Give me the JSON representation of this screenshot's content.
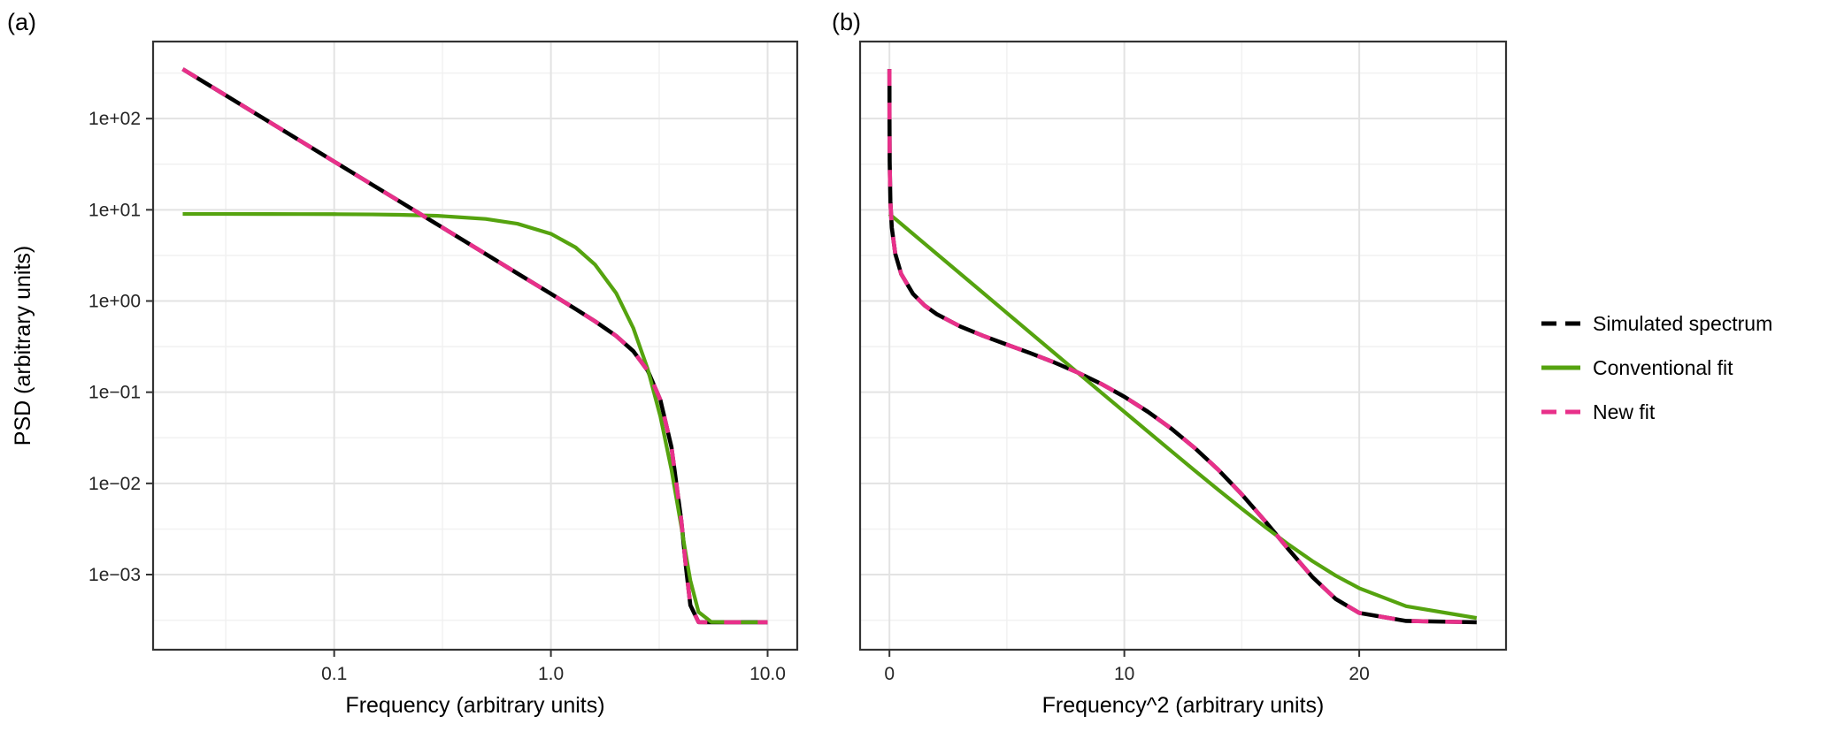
{
  "style": {
    "background": "#ffffff",
    "panel_border": "#333333",
    "grid_major": "#e3e3e3",
    "grid_minor": "#f1f1f1",
    "tick_color": "#333333",
    "tick_label_color": "#262626",
    "text_color": "#000000",
    "colors": {
      "simulated": "#000000",
      "conventional": "#55a30f",
      "new_fit": "#e8308a"
    }
  },
  "figure": {
    "ylabel": "PSD (arbitrary units)"
  },
  "legend": {
    "items": [
      {
        "label": "Simulated spectrum",
        "color": "#000000",
        "dashed": true
      },
      {
        "label": "Conventional fit",
        "color": "#55a30f",
        "dashed": false
      },
      {
        "label": "New fit",
        "color": "#e8308a",
        "dashed": true
      }
    ]
  },
  "chart_data": [
    {
      "id": "a",
      "type": "line",
      "tag": "(a)",
      "xlabel": "Frequency (arbitrary units)",
      "ylabel": "PSD (arbitrary units)",
      "x_scale": "log",
      "y_scale": "log",
      "x_domain": [
        0.0146,
        13.7
      ],
      "y_domain": [
        0.00015,
        700
      ],
      "x_ticks": [
        {
          "v": 0.1,
          "label": "0.1"
        },
        {
          "v": 1,
          "label": "1.0"
        },
        {
          "v": 10,
          "label": "10.0"
        }
      ],
      "x_minor": [
        0.0316,
        0.316,
        3.16
      ],
      "y_ticks": [
        {
          "v": 100,
          "label": "1e+02"
        },
        {
          "v": 10,
          "label": "1e+01"
        },
        {
          "v": 1,
          "label": "1e+00"
        },
        {
          "v": 0.1,
          "label": "1e−01"
        },
        {
          "v": 0.01,
          "label": "1e−02"
        },
        {
          "v": 0.001,
          "label": "1e−03"
        }
      ],
      "y_minor": [
        0.000316,
        0.00316,
        0.0316,
        0.316,
        3.16,
        31.6,
        316
      ],
      "show_y_labels": true,
      "grid": true,
      "series": [
        {
          "name": "Simulated spectrum",
          "color": "#000000",
          "dash": null,
          "width": 4.6,
          "x": [
            0.02,
            0.03,
            0.05,
            0.07,
            0.1,
            0.15,
            0.2,
            0.3,
            0.5,
            0.7,
            1.0,
            1.3,
            1.6,
            2.0,
            2.4,
            2.8,
            3.2,
            3.6,
            4.0,
            4.2,
            4.4,
            4.8,
            5.5,
            7.0,
            10.0
          ],
          "y": [
            349,
            194,
            92.4,
            56.7,
            33.8,
            18.8,
            12.4,
            6.88,
            3.28,
            2.01,
            1.2,
            0.817,
            0.598,
            0.414,
            0.282,
            0.172,
            0.0821,
            0.025,
            0.00384,
            0.0012,
            0.000462,
            0.000301,
            0.0003,
            0.0003,
            0.0003
          ]
        },
        {
          "name": "Conventional fit",
          "color": "#55a30f",
          "dash": null,
          "width": 4.2,
          "x": [
            0.02,
            0.03,
            0.05,
            0.07,
            0.1,
            0.15,
            0.2,
            0.3,
            0.5,
            0.7,
            1.0,
            1.3,
            1.6,
            2.0,
            2.4,
            2.8,
            3.2,
            3.6,
            4.0,
            4.2,
            4.4,
            4.8,
            5.5,
            7.0,
            10.0
          ],
          "y": [
            9.0,
            9.0,
            8.99,
            8.98,
            8.96,
            8.9,
            8.82,
            8.6,
            7.94,
            7.04,
            5.46,
            3.87,
            2.5,
            1.22,
            0.505,
            0.178,
            0.0541,
            0.0141,
            0.00332,
            0.00163,
            0.000863,
            0.000389,
            0.000302,
            0.0003,
            0.0003
          ]
        },
        {
          "name": "New fit",
          "color": "#e8308a",
          "dash": "19 19",
          "width": 4.6,
          "x": [
            0.02,
            0.03,
            0.05,
            0.07,
            0.1,
            0.15,
            0.2,
            0.3,
            0.5,
            0.7,
            1.0,
            1.3,
            1.6,
            2.0,
            2.4,
            2.8,
            3.2,
            3.6,
            4.0,
            4.2,
            4.4,
            4.8,
            5.5,
            7.0,
            10.0
          ],
          "y": [
            349,
            194,
            92.4,
            56.7,
            33.8,
            18.8,
            12.4,
            6.88,
            3.28,
            2.01,
            1.2,
            0.817,
            0.598,
            0.414,
            0.282,
            0.172,
            0.0821,
            0.025,
            0.00384,
            0.0012,
            0.000462,
            0.000301,
            0.0003,
            0.0003,
            0.0003
          ]
        }
      ]
    },
    {
      "id": "b",
      "type": "line",
      "tag": "(b)",
      "xlabel": "Frequency^2 (arbitrary units)",
      "ylabel": "PSD (arbitrary units)",
      "x_scale": "linear",
      "y_scale": "log",
      "x_domain": [
        -1.25,
        26.25
      ],
      "y_domain": [
        0.00015,
        700
      ],
      "x_ticks": [
        {
          "v": 0,
          "label": "0"
        },
        {
          "v": 10,
          "label": "10"
        },
        {
          "v": 20,
          "label": "20"
        }
      ],
      "x_minor": [
        5,
        15,
        25
      ],
      "y_ticks": [
        {
          "v": 100,
          "label": "1e+02"
        },
        {
          "v": 10,
          "label": "1e+01"
        },
        {
          "v": 1,
          "label": "1e+00"
        },
        {
          "v": 0.1,
          "label": "1e−01"
        },
        {
          "v": 0.01,
          "label": "1e−02"
        },
        {
          "v": 0.001,
          "label": "1e−03"
        }
      ],
      "y_minor": [
        0.000316,
        0.00316,
        0.0316,
        0.316,
        3.16,
        31.6,
        316
      ],
      "show_y_labels": false,
      "grid": true,
      "series": [
        {
          "name": "Simulated spectrum",
          "color": "#000000",
          "dash": null,
          "width": 4.6,
          "x": [
            0.0004,
            0.0025,
            0.01,
            0.04,
            0.1,
            0.25,
            0.5,
            1,
            1.5,
            2,
            3,
            4,
            5,
            6,
            7,
            8,
            9,
            10,
            11,
            12,
            13,
            14,
            15,
            16,
            17,
            18,
            19,
            20,
            22,
            25
          ],
          "y": [
            349,
            92.4,
            33.8,
            12.4,
            6.37,
            3.28,
            1.98,
            1.2,
            0.891,
            0.721,
            0.528,
            0.414,
            0.333,
            0.268,
            0.213,
            0.165,
            0.124,
            0.0891,
            0.0611,
            0.0399,
            0.0244,
            0.0141,
            0.00758,
            0.00384,
            0.00188,
            0.000945,
            0.00054,
            0.00038,
            0.00031,
            0.0003
          ]
        },
        {
          "name": "Conventional fit",
          "color": "#55a30f",
          "dash": null,
          "width": 4.2,
          "x": [
            0.0004,
            0.04,
            0.1,
            0.25,
            0.5,
            1,
            1.5,
            2,
            3,
            4,
            5,
            6,
            7,
            8,
            9,
            10,
            11,
            12,
            13,
            14,
            15,
            16,
            17,
            18,
            19,
            20,
            22,
            25
          ],
          "y": [
            9.0,
            8.82,
            8.56,
            7.94,
            7.01,
            5.46,
            4.25,
            3.31,
            2.01,
            1.22,
            0.739,
            0.448,
            0.272,
            0.165,
            0.1,
            0.0609,
            0.0371,
            0.0226,
            0.0138,
            0.00851,
            0.00528,
            0.00332,
            0.00213,
            0.00141,
            0.000974,
            0.000709,
            0.00045,
            0.000334
          ]
        },
        {
          "name": "New fit",
          "color": "#e8308a",
          "dash": "19 19",
          "width": 4.6,
          "x": [
            0.0004,
            0.0025,
            0.01,
            0.04,
            0.1,
            0.25,
            0.5,
            1,
            1.5,
            2,
            3,
            4,
            5,
            6,
            7,
            8,
            9,
            10,
            11,
            12,
            13,
            14,
            15,
            16,
            17,
            18,
            19,
            20,
            22,
            25
          ],
          "y": [
            349,
            92.4,
            33.8,
            12.4,
            6.37,
            3.28,
            1.98,
            1.2,
            0.891,
            0.721,
            0.528,
            0.414,
            0.333,
            0.268,
            0.213,
            0.165,
            0.124,
            0.0891,
            0.0611,
            0.0399,
            0.0244,
            0.0141,
            0.00758,
            0.00384,
            0.00188,
            0.000945,
            0.00054,
            0.00038,
            0.00031,
            0.0003
          ]
        }
      ]
    }
  ]
}
